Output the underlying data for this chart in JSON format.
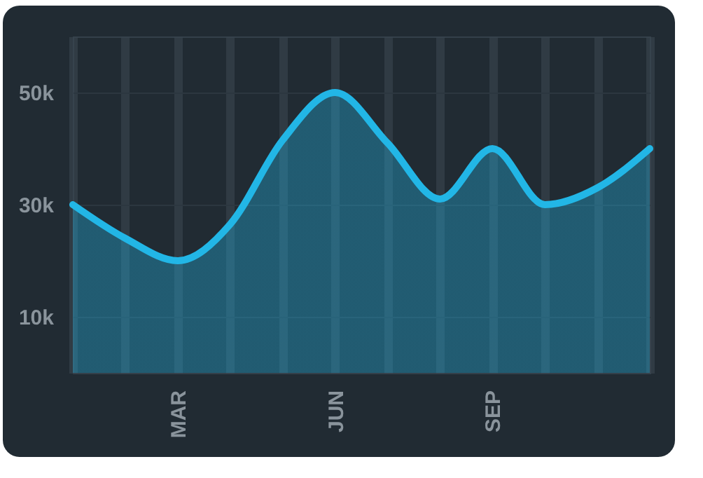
{
  "chart_data": {
    "type": "area",
    "categories": [
      null,
      null,
      "MAR",
      null,
      null,
      "JUN",
      null,
      null,
      "SEP",
      null,
      null,
      null
    ],
    "series": [
      {
        "color": "#22b6e6",
        "values": [
          30000,
          24000,
          20000,
          26500,
          41500,
          50000,
          41000,
          31000,
          40000,
          30000,
          33000,
          40000
        ]
      }
    ],
    "ylim": [
      0,
      60000
    ],
    "yticks": [
      {
        "value": 10000,
        "label": "10k"
      },
      {
        "value": 30000,
        "label": "30k"
      },
      {
        "value": 50000,
        "label": "50k"
      }
    ],
    "grid": true,
    "marker": "none"
  }
}
